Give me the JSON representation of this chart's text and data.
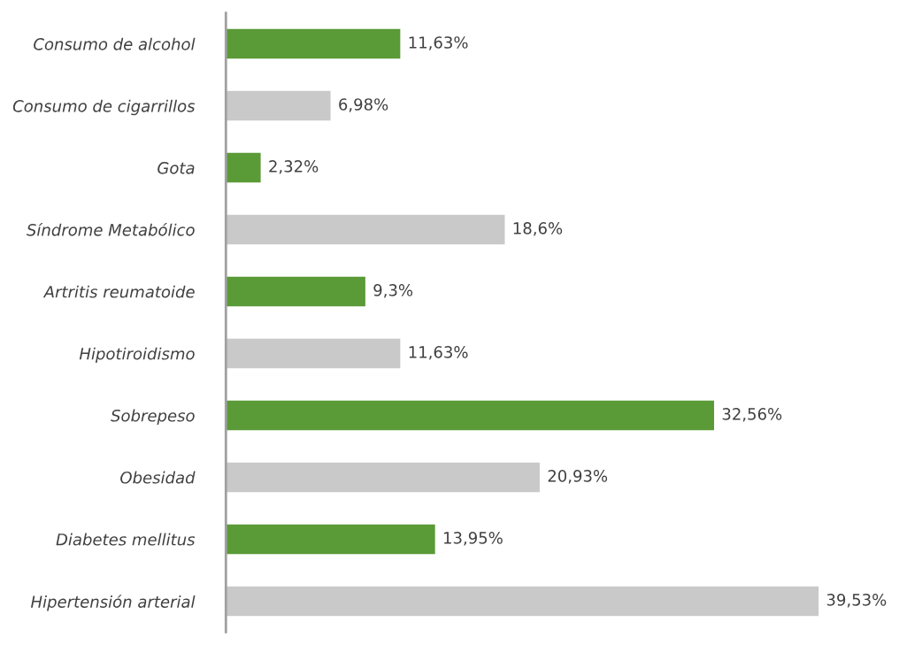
{
  "chart_data": {
    "type": "bar",
    "orientation": "horizontal",
    "tick_labels": "y",
    "categories": [
      "Consumo de alcohol",
      "Consumo de cigarrillos",
      "Gota",
      "Síndrome Metabólico",
      "Artritis reumatoide",
      "Hipotiroidismo",
      "Sobrepeso",
      "Obesidad",
      "Diabetes mellitus",
      "Hipertensión arterial"
    ],
    "values": [
      11.63,
      6.98,
      2.32,
      18.6,
      9.3,
      11.63,
      32.56,
      20.93,
      13.95,
      39.53
    ],
    "colors": [
      "#5a9a37",
      "#c9c9c9",
      "#5a9a37",
      "#c9c9c9",
      "#5a9a37",
      "#c9c9c9",
      "#5a9a37",
      "#c9c9c9",
      "#5a9a37",
      "#c9c9c9"
    ],
    "value_labels": [
      "11,63%",
      "6,98%",
      "2,32%",
      "18,6%",
      "9,3%",
      "11,63%",
      "32,56%",
      "20,93%",
      "13,95%",
      "39,53%"
    ]
  }
}
